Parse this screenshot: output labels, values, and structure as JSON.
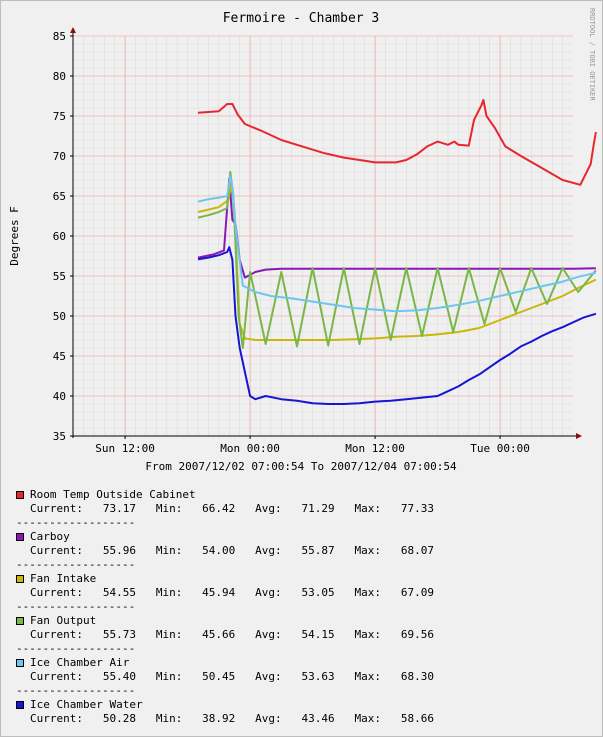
{
  "chart_data": {
    "type": "line",
    "title": "Fermoire - Chamber 3",
    "ylabel": "Degrees F",
    "watermark": "RRDTOOL / TOBI OETIKER",
    "range_label": "From 2007/12/02 07:00:54 To 2007/12/04 07:00:54",
    "ylim": [
      35,
      85
    ],
    "y_ticks": [
      35,
      40,
      45,
      50,
      55,
      60,
      65,
      70,
      75,
      80,
      85
    ],
    "x_ticks": [
      {
        "label": "Sun 12:00",
        "hour": 5
      },
      {
        "label": "Mon 00:00",
        "hour": 17
      },
      {
        "label": "Mon 12:00",
        "hour": 29
      },
      {
        "label": "Tue 00:00",
        "hour": 41
      }
    ],
    "x_unit": "hours since 2007/12/02 07:00:54",
    "xlim": [
      0,
      48
    ],
    "series": [
      {
        "name": "Room Temp Outside Cabinet",
        "color": "#e8262f",
        "current": "73.17",
        "min": "66.42",
        "avg": "71.29",
        "max": "77.33",
        "points": [
          [
            12.0,
            75.4
          ],
          [
            13.0,
            75.5
          ],
          [
            14.0,
            75.6
          ],
          [
            14.8,
            76.5
          ],
          [
            15.3,
            76.5
          ],
          [
            15.8,
            75.2
          ],
          [
            16.5,
            74.0
          ],
          [
            18,
            73.2
          ],
          [
            20,
            72.0
          ],
          [
            22,
            71.2
          ],
          [
            24,
            70.4
          ],
          [
            26,
            69.8
          ],
          [
            28,
            69.4
          ],
          [
            29,
            69.2
          ],
          [
            31,
            69.2
          ],
          [
            32,
            69.5
          ],
          [
            33,
            70.2
          ],
          [
            34,
            71.2
          ],
          [
            35,
            71.8
          ],
          [
            36,
            71.4
          ],
          [
            36.6,
            71.8
          ],
          [
            37,
            71.4
          ],
          [
            38.0,
            71.3
          ],
          [
            38.5,
            74.5
          ],
          [
            39.2,
            76.3
          ],
          [
            39.4,
            77.0
          ],
          [
            39.7,
            75.0
          ],
          [
            40.5,
            73.5
          ],
          [
            41.5,
            71.2
          ],
          [
            43,
            70.0
          ],
          [
            45,
            68.5
          ],
          [
            47,
            67.0
          ],
          [
            48.7,
            66.4
          ],
          [
            49.7,
            69.0
          ],
          [
            50.0,
            71.5
          ],
          [
            50.2,
            73.0
          ]
        ]
      },
      {
        "name": "Carboy",
        "color": "#8a18b5",
        "current": "55.96",
        "min": "54.00",
        "avg": "55.87",
        "max": "68.07",
        "points": [
          [
            12.0,
            57.3
          ],
          [
            13.5,
            57.7
          ],
          [
            14.5,
            58.2
          ],
          [
            15.0,
            67.2
          ],
          [
            15.3,
            62.0
          ],
          [
            15.6,
            61.5
          ],
          [
            16.0,
            57.0
          ],
          [
            16.5,
            54.8
          ],
          [
            17.5,
            55.5
          ],
          [
            18.5,
            55.8
          ],
          [
            20,
            55.9
          ],
          [
            22,
            55.9
          ],
          [
            24,
            55.9
          ],
          [
            26,
            55.9
          ],
          [
            28,
            55.9
          ],
          [
            30,
            55.9
          ],
          [
            32,
            55.9
          ],
          [
            34,
            55.9
          ],
          [
            36,
            55.9
          ],
          [
            38,
            55.9
          ],
          [
            40,
            55.9
          ],
          [
            42,
            55.9
          ],
          [
            44,
            55.9
          ],
          [
            46,
            55.9
          ],
          [
            48,
            55.9
          ],
          [
            50.2,
            55.96
          ]
        ]
      },
      {
        "name": "Fan Intake",
        "color": "#c9b70a",
        "current": "54.55",
        "min": "45.94",
        "avg": "53.05",
        "max": "67.09",
        "points": [
          [
            12.0,
            63.0
          ],
          [
            13.0,
            63.3
          ],
          [
            14.0,
            63.6
          ],
          [
            14.9,
            64.5
          ],
          [
            15.2,
            66.5
          ],
          [
            15.5,
            63.0
          ],
          [
            16.0,
            49.0
          ],
          [
            16.5,
            47.2
          ],
          [
            17.5,
            47.0
          ],
          [
            19,
            47.0
          ],
          [
            21,
            47.0
          ],
          [
            23,
            47.0
          ],
          [
            25,
            47.0
          ],
          [
            27,
            47.1
          ],
          [
            29,
            47.2
          ],
          [
            31,
            47.4
          ],
          [
            33,
            47.5
          ],
          [
            35,
            47.7
          ],
          [
            37,
            48.0
          ],
          [
            39,
            48.5
          ],
          [
            41,
            49.5
          ],
          [
            43,
            50.5
          ],
          [
            45,
            51.5
          ],
          [
            47,
            52.5
          ],
          [
            48.5,
            53.5
          ],
          [
            50.2,
            54.55
          ]
        ]
      },
      {
        "name": "Fan Output",
        "color": "#7ab648",
        "current": "55.73",
        "min": "45.66",
        "avg": "54.15",
        "max": "69.56",
        "points": [
          [
            12.0,
            62.3
          ],
          [
            13.0,
            62.6
          ],
          [
            14.0,
            63.0
          ],
          [
            14.8,
            63.5
          ],
          [
            15.1,
            68.0
          ],
          [
            15.4,
            65.0
          ],
          [
            15.9,
            50.0
          ],
          [
            16.3,
            46.0
          ],
          [
            17.0,
            55.5
          ],
          [
            18.5,
            46.5
          ],
          [
            20,
            55.5
          ],
          [
            21.5,
            46.2
          ],
          [
            23,
            56.0
          ],
          [
            24.5,
            46.3
          ],
          [
            26,
            56.0
          ],
          [
            27.5,
            46.5
          ],
          [
            29,
            56.0
          ],
          [
            30.5,
            47.0
          ],
          [
            32,
            56.0
          ],
          [
            33.5,
            47.5
          ],
          [
            35,
            56.0
          ],
          [
            36.5,
            48.0
          ],
          [
            38,
            56.0
          ],
          [
            39.5,
            49.0
          ],
          [
            41,
            56.0
          ],
          [
            42.5,
            50.5
          ],
          [
            44,
            56.0
          ],
          [
            45.5,
            51.5
          ],
          [
            47,
            56.0
          ],
          [
            48.5,
            53.0
          ],
          [
            50.2,
            55.73
          ]
        ]
      },
      {
        "name": "Ice Chamber Air",
        "color": "#6cc7f0",
        "current": "55.40",
        "min": "50.45",
        "avg": "53.63",
        "max": "68.30",
        "points": [
          [
            12.0,
            64.3
          ],
          [
            13.0,
            64.6
          ],
          [
            14.0,
            64.8
          ],
          [
            14.8,
            65.0
          ],
          [
            15.1,
            67.5
          ],
          [
            15.3,
            66.0
          ],
          [
            15.7,
            60.0
          ],
          [
            16.3,
            53.8
          ],
          [
            17.5,
            53.0
          ],
          [
            19,
            52.5
          ],
          [
            21,
            52.2
          ],
          [
            23,
            51.8
          ],
          [
            25,
            51.4
          ],
          [
            27,
            51.0
          ],
          [
            29,
            50.8
          ],
          [
            31,
            50.6
          ],
          [
            33,
            50.7
          ],
          [
            35,
            51.0
          ],
          [
            37,
            51.4
          ],
          [
            39,
            51.9
          ],
          [
            41,
            52.5
          ],
          [
            43,
            53.1
          ],
          [
            45,
            53.7
          ],
          [
            47,
            54.3
          ],
          [
            48.5,
            54.9
          ],
          [
            50.2,
            55.4
          ]
        ]
      },
      {
        "name": "Ice Chamber Water",
        "color": "#1515d6",
        "current": "50.28",
        "min": "38.92",
        "avg": "43.46",
        "max": "58.66",
        "points": [
          [
            12.0,
            57.1
          ],
          [
            13.0,
            57.3
          ],
          [
            14.0,
            57.6
          ],
          [
            14.8,
            58.0
          ],
          [
            15.0,
            58.6
          ],
          [
            15.3,
            57.0
          ],
          [
            15.6,
            50.0
          ],
          [
            16.0,
            46.0
          ],
          [
            16.5,
            43.0
          ],
          [
            17.0,
            40.0
          ],
          [
            17.5,
            39.6
          ],
          [
            18.5,
            40.0
          ],
          [
            20,
            39.6
          ],
          [
            21.5,
            39.4
          ],
          [
            23,
            39.1
          ],
          [
            24.5,
            39.0
          ],
          [
            26,
            39.0
          ],
          [
            27.5,
            39.1
          ],
          [
            29,
            39.3
          ],
          [
            30.5,
            39.4
          ],
          [
            32,
            39.6
          ],
          [
            33.5,
            39.8
          ],
          [
            35,
            40.0
          ],
          [
            36,
            40.6
          ],
          [
            37,
            41.2
          ],
          [
            38,
            42.0
          ],
          [
            39,
            42.7
          ],
          [
            40,
            43.6
          ],
          [
            41,
            44.5
          ],
          [
            42,
            45.3
          ],
          [
            43,
            46.2
          ],
          [
            44,
            46.8
          ],
          [
            45,
            47.5
          ],
          [
            46,
            48.1
          ],
          [
            47,
            48.6
          ],
          [
            48,
            49.2
          ],
          [
            49,
            49.8
          ],
          [
            50.2,
            50.28
          ]
        ]
      }
    ]
  },
  "legend": {
    "current_label": "Current:",
    "min_label": "Min:",
    "avg_label": "Avg:",
    "max_label": "Max:",
    "separator": "------------------"
  }
}
